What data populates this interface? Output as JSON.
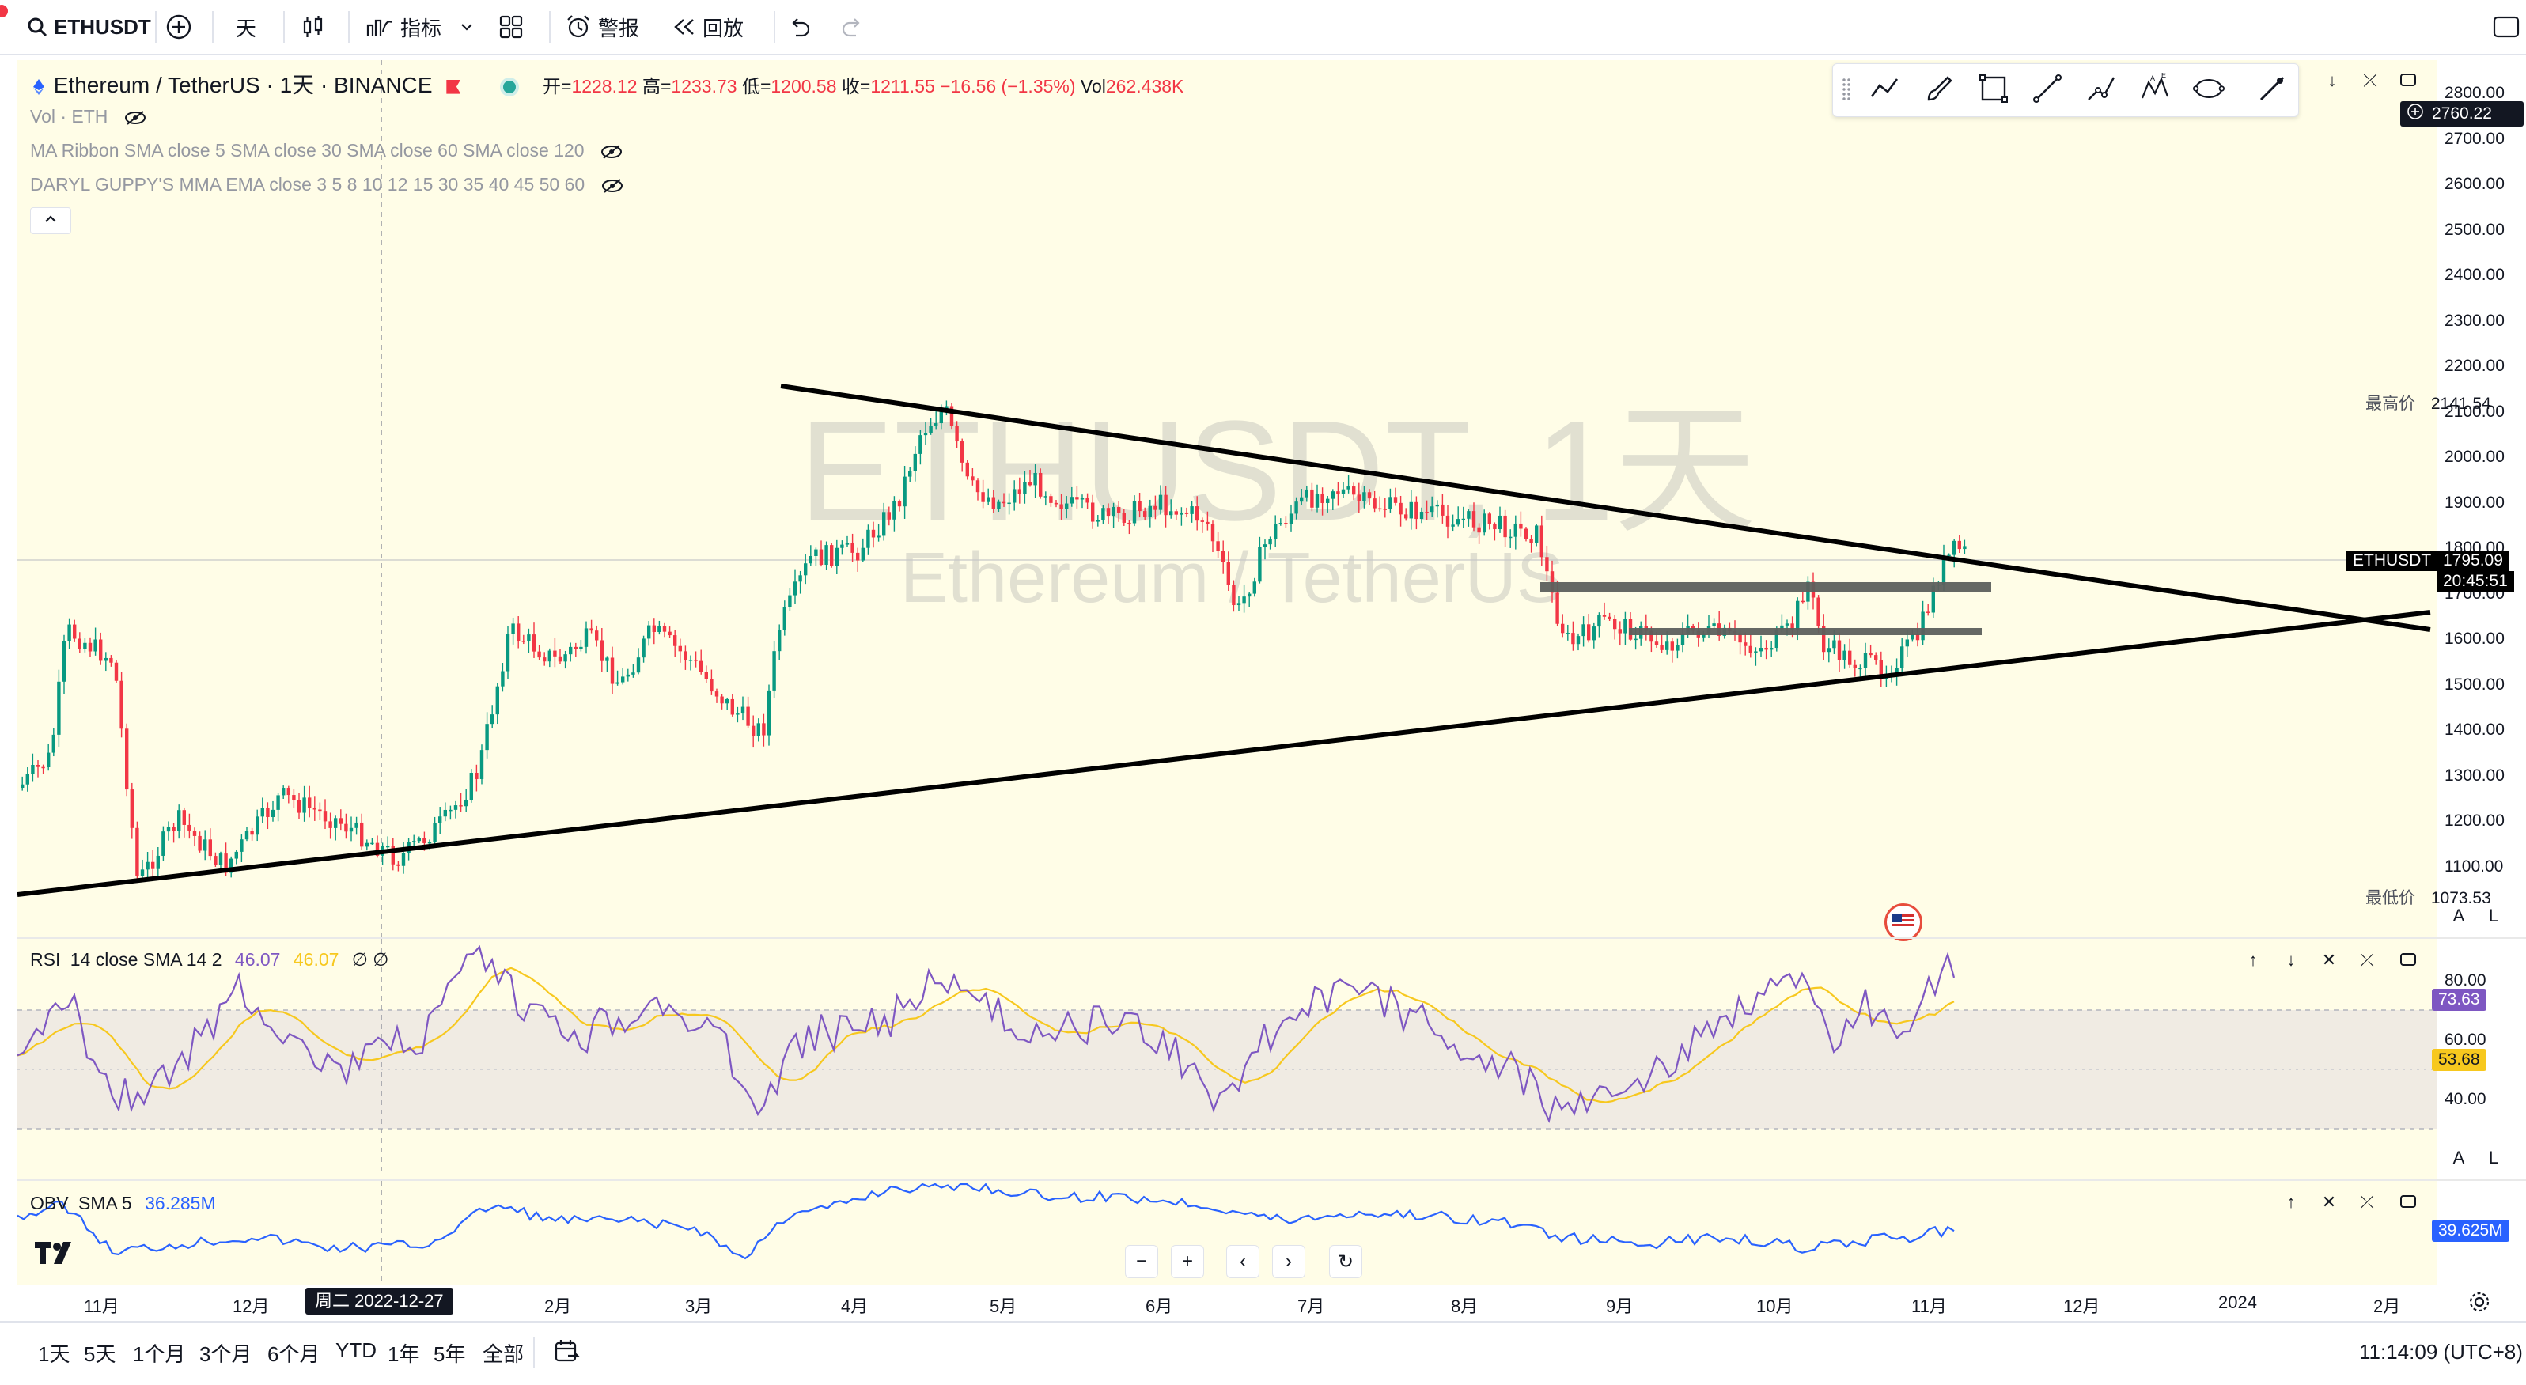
{
  "toolbar": {
    "symbol": "ETHUSDT",
    "interval": "天",
    "indicators": "指标",
    "alert": "警报",
    "replay": "回放"
  },
  "header": {
    "symbol_full": "Ethereum / TetherUS · 1天 · BINANCE",
    "ohlc": {
      "open_label": "开",
      "open": "1228.12",
      "high_label": "高",
      "high": "1233.73",
      "low_label": "低",
      "low": "1200.58",
      "close_label": "收",
      "close": "1211.55",
      "change": "−16.56 (−1.35%)",
      "vol_label": "Vol",
      "vol": "262.438K"
    },
    "indicators": [
      "Vol · ETH",
      "MA Ribbon SMA close 5 SMA close 30 SMA close 60 SMA close 120",
      "DARYL GUPPY'S MMA EMA close 3 5 8 10 12 15 30 35 40 45 50 60"
    ]
  },
  "watermark": {
    "line1": "ETHUSDT, 1天",
    "line2": "Ethereum / TetherUS"
  },
  "price_axis": {
    "labels": [
      "2800.00",
      "2700.00",
      "2600.00",
      "2500.00",
      "2400.00",
      "2300.00",
      "2200.00",
      "2100.00",
      "2000.00",
      "1900.00",
      "1800.00",
      "1700.00",
      "1600.00",
      "1500.00",
      "1400.00",
      "1300.00",
      "1200.00",
      "1100.00"
    ],
    "crosshair_price": "2760.22",
    "high_label": "最高价",
    "high_value": "2141.54",
    "low_label": "最低价",
    "low_value": "1073.53",
    "last_symbol": "ETHUSDT",
    "last_price": "1795.09",
    "countdown": "20:45:51",
    "auto_btn": "A",
    "log_btn": "L"
  },
  "rsi": {
    "title": "RSI",
    "params": "14 close SMA 14 2",
    "value1": "46.07",
    "value2": "46.07",
    "extra": "∅ ∅",
    "axis": [
      "80.00",
      "60.00",
      "40.00"
    ],
    "tag_rsi": "73.63",
    "tag_ma": "53.68",
    "color_rsi": "#7e57c2",
    "color_ma": "#f7c81e",
    "auto_btn": "A",
    "log_btn": "L"
  },
  "obv": {
    "title": "OBV",
    "params": "SMA 5",
    "value": "36.285M",
    "tag": "39.625M",
    "color": "#2962ff"
  },
  "time_axis": {
    "labels": [
      "11月",
      "12月",
      "2月",
      "3月",
      "4月",
      "5月",
      "6月",
      "7月",
      "8月",
      "9月",
      "10月",
      "11月",
      "12月",
      "2024",
      "2月"
    ],
    "crosshair_date": "周二 2022-12-27"
  },
  "bottom": {
    "timeframes": [
      "1天",
      "5天",
      "1个月",
      "3个月",
      "6个月",
      "YTD",
      "1年",
      "5年",
      "全部"
    ],
    "clock": "11:14:09 (UTC+8)"
  },
  "colors": {
    "up": "#089981",
    "down": "#f23645",
    "bg": "#fffde7",
    "trend": "#000000",
    "zone": "#5d605d"
  }
}
